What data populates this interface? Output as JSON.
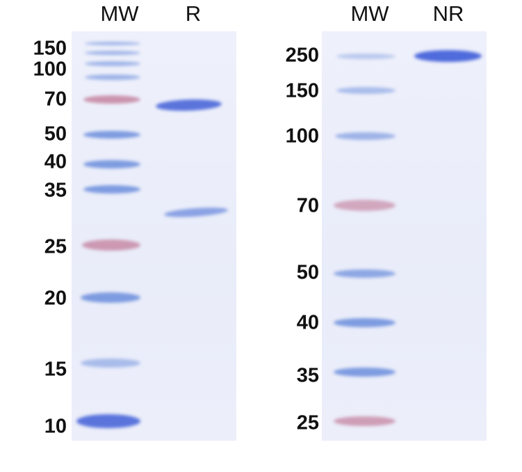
{
  "left_panel": {
    "lane_headers": [
      "MW",
      "R"
    ],
    "mw_labels": [
      "150",
      "100",
      "70",
      "50",
      "40",
      "35",
      "25",
      "20",
      "15",
      "10"
    ]
  },
  "right_panel": {
    "lane_headers": [
      "MW",
      "NR"
    ],
    "mw_labels": [
      "250",
      "150",
      "100",
      "70",
      "50",
      "40",
      "35",
      "25"
    ]
  },
  "colors": {
    "gel": "#eceefa",
    "band_blue": "#5a74dc",
    "marker_pink": "#c78aa6"
  }
}
